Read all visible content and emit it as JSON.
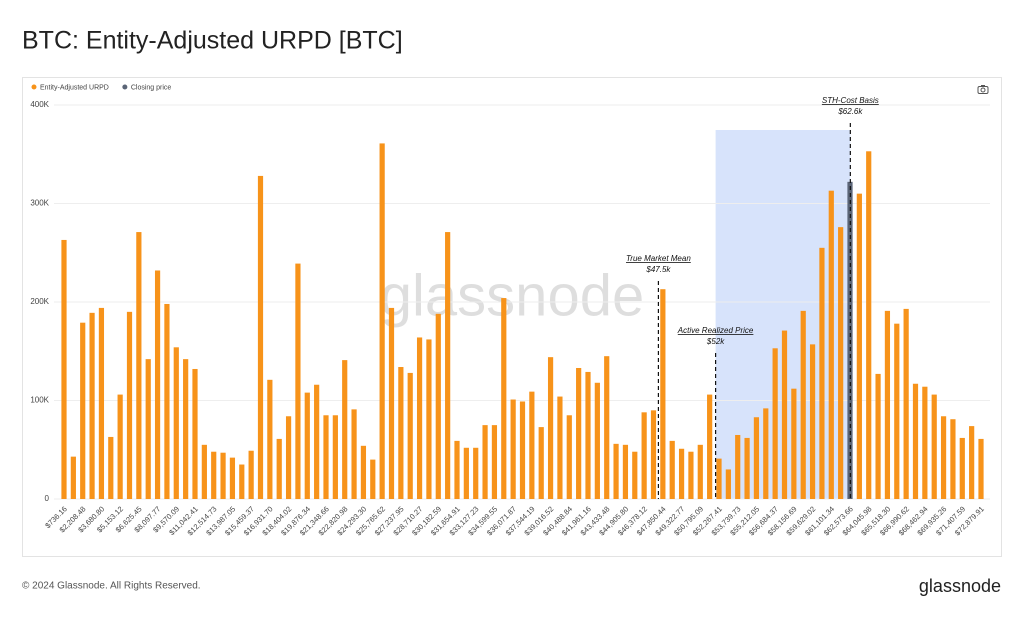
{
  "chart_data": {
    "type": "bar",
    "title": "BTC: Entity-Adjusted URPD [BTC]",
    "footer": "© 2024 Glassnode. All Rights Reserved.",
    "logo": "glassnode",
    "watermark": "glassnode",
    "categories": [
      "$736.16",
      null,
      "$2,208.48",
      null,
      "$3,680.80",
      null,
      "$5,153.12",
      null,
      "$6,625.45",
      null,
      "$8,097.77",
      null,
      "$9,570.09",
      null,
      "$11,042.41",
      null,
      "$12,514.73",
      null,
      "$13,987.05",
      null,
      "$15,459.37",
      null,
      "$16,931.70",
      null,
      "$18,404.02",
      null,
      "$19,876.34",
      null,
      "$21,348.66",
      null,
      "$22,820.98",
      null,
      "$24,293.30",
      null,
      "$25,765.62",
      null,
      "$27,237.95",
      null,
      "$28,710.27",
      null,
      "$30,182.59",
      null,
      "$31,654.91",
      null,
      "$33,127.23",
      null,
      "$34,599.55",
      null,
      "$36,071.87",
      null,
      "$37,544.19",
      null,
      "$39,016.52",
      null,
      "$40,488.84",
      null,
      "$41,961.16",
      null,
      "$43,433.48",
      null,
      "$44,905.80",
      null,
      "$46,378.12",
      null,
      "$47,850.44",
      null,
      "$49,322.77",
      null,
      "$50,795.09",
      null,
      "$52,267.41",
      null,
      "$53,739.73",
      null,
      "$55,212.05",
      null,
      "$56,684.37",
      null,
      "$58,156.69",
      null,
      "$59,629.02",
      null,
      "$61,101.34",
      null,
      "$62,573.66",
      null,
      "$64,045.98",
      null,
      "$65,518.30",
      null,
      "$66,990.62",
      null,
      "$68,462.94",
      null,
      "$69,935.26",
      null,
      "$71,407.59",
      null,
      "$72,879.91"
    ],
    "series": [
      {
        "name": "Entity-Adjusted URPD",
        "color": "#f7931a",
        "values": [
          263000,
          43000,
          179000,
          189000,
          194000,
          63000,
          106000,
          190000,
          271000,
          142000,
          232000,
          198000,
          154000,
          142000,
          132000,
          55000,
          48000,
          47000,
          42000,
          35000,
          49000,
          328000,
          121000,
          61000,
          84000,
          239000,
          108000,
          116000,
          85000,
          85000,
          141000,
          91000,
          54000,
          40000,
          361000,
          194000,
          134000,
          128000,
          164000,
          162000,
          188000,
          271000,
          59000,
          52000,
          52000,
          75000,
          75000,
          204000,
          101000,
          99000,
          109000,
          73000,
          144000,
          104000,
          85000,
          133000,
          129000,
          118000,
          145000,
          56000,
          55000,
          48000,
          88000,
          90000,
          213000,
          59000,
          51000,
          48000,
          55000,
          106000,
          41000,
          30000,
          65000,
          62000,
          83000,
          92000,
          153000,
          171000,
          112000,
          191000,
          157000,
          255000,
          313000,
          276000,
          null,
          310000,
          353000,
          127000,
          191000,
          178000,
          193000,
          117000,
          114000,
          106000,
          84000,
          81000,
          62000,
          74000,
          61000
        ]
      },
      {
        "name": "Closing price",
        "color": "#5b6577",
        "values": [
          null,
          null,
          null,
          null,
          null,
          null,
          null,
          null,
          null,
          null,
          null,
          null,
          null,
          null,
          null,
          null,
          null,
          null,
          null,
          null,
          null,
          null,
          null,
          null,
          null,
          null,
          null,
          null,
          null,
          null,
          null,
          null,
          null,
          null,
          null,
          null,
          null,
          null,
          null,
          null,
          null,
          null,
          null,
          null,
          null,
          null,
          null,
          null,
          null,
          null,
          null,
          null,
          null,
          null,
          null,
          null,
          null,
          null,
          null,
          null,
          null,
          null,
          null,
          null,
          null,
          null,
          null,
          null,
          null,
          null,
          null,
          null,
          null,
          null,
          null,
          null,
          null,
          null,
          null,
          null,
          null,
          null,
          null,
          null,
          322000,
          null,
          null,
          null,
          null,
          null,
          null,
          null,
          null,
          null,
          null,
          null,
          null,
          null,
          null
        ]
      }
    ],
    "annotations": [
      {
        "text": "True Market Mean",
        "value": 47500,
        "label": "$47.5k"
      },
      {
        "text": "Active Realized Price",
        "value": 52000,
        "label": "$52k"
      },
      {
        "text": "STH-Cost Basis",
        "value": 62600,
        "label": "$62.6k"
      }
    ],
    "ylim": [
      0,
      400000
    ],
    "yticks": [
      {
        "value": 0,
        "label": "0"
      },
      {
        "value": 100000,
        "label": "100K"
      },
      {
        "value": 200000,
        "label": "200K"
      },
      {
        "value": 300000,
        "label": "300K"
      },
      {
        "value": 400000,
        "label": "400K"
      }
    ],
    "grid": true
  }
}
